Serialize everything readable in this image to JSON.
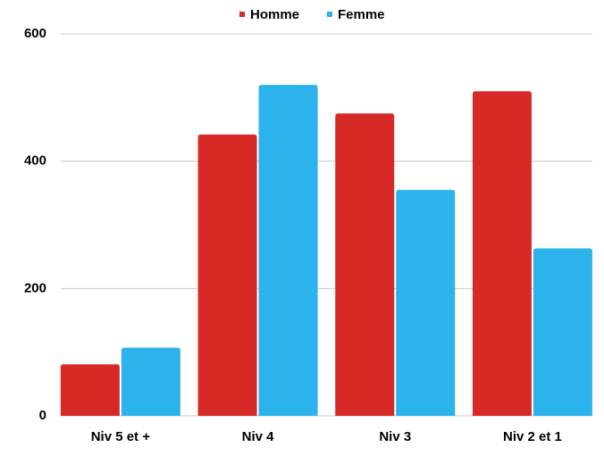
{
  "chart_data": {
    "type": "bar",
    "categories": [
      "Niv 5 et +",
      "Niv 4",
      "Niv 3",
      "Niv 2 et 1"
    ],
    "series": [
      {
        "name": "Homme",
        "color": "#d72a27",
        "values": [
          81,
          442,
          475,
          510
        ]
      },
      {
        "name": "Femme",
        "color": "#2db3ec",
        "values": [
          107,
          520,
          355,
          263
        ]
      }
    ],
    "ylim": [
      0,
      600
    ],
    "yticks": [
      0,
      200,
      400,
      600
    ],
    "grid": true,
    "legend": "top"
  }
}
